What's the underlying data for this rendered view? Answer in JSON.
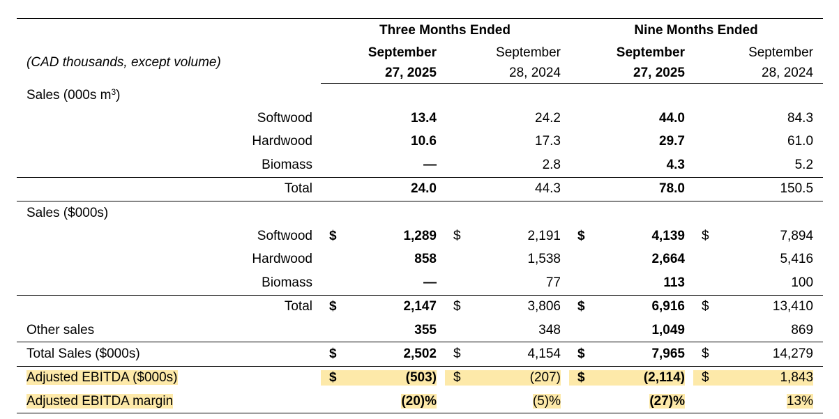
{
  "header": {
    "three_months": "Three Months Ended",
    "nine_months": "Nine Months Ended",
    "units_note": "(CAD thousands, except volume)",
    "col1_line1": "September",
    "col1_line2": "27, 2025",
    "col2_line1": "September",
    "col2_line2": "28, 2024",
    "col3_line1": "September",
    "col3_line2": "27, 2025",
    "col4_line1": "September",
    "col4_line2": "28, 2024"
  },
  "volume": {
    "section_label": "Sales (000s m",
    "section_sup": "3",
    "section_close": ")",
    "rows": [
      {
        "label": "Softwood",
        "v": [
          "13.4",
          "24.2",
          "44.0",
          "84.3"
        ]
      },
      {
        "label": "Hardwood",
        "v": [
          "10.6",
          "17.3",
          "29.7",
          "61.0"
        ]
      },
      {
        "label": "Biomass",
        "v": [
          "—",
          "2.8",
          "4.3",
          "5.2"
        ]
      }
    ],
    "total": {
      "label": "Total",
      "v": [
        "24.0",
        "44.3",
        "78.0",
        "150.5"
      ]
    }
  },
  "sales": {
    "section_label": "Sales ($000s)",
    "currency": "$",
    "rows": [
      {
        "label": "Softwood",
        "v": [
          "1,289",
          "2,191",
          "4,139",
          "7,894"
        ]
      },
      {
        "label": "Hardwood",
        "v": [
          "858",
          "1,538",
          "2,664",
          "5,416"
        ]
      },
      {
        "label": "Biomass",
        "v": [
          "—",
          "77",
          "113",
          "100"
        ]
      }
    ],
    "total": {
      "label": "Total",
      "v": [
        "2,147",
        "3,806",
        "6,916",
        "13,410"
      ]
    }
  },
  "other_sales": {
    "label": "Other sales",
    "v": [
      "355",
      "348",
      "1,049",
      "869"
    ]
  },
  "total_sales": {
    "label": "Total Sales ($000s)",
    "v": [
      "2,502",
      "4,154",
      "7,965",
      "14,279"
    ]
  },
  "adjusted_ebitda": {
    "label": "Adjusted EBITDA ($000s)",
    "v": [
      "(503)",
      "(207)",
      "(2,114)",
      "1,843"
    ]
  },
  "adjusted_ebitda_margin": {
    "label": "Adjusted EBITDA margin",
    "v": [
      "(20)%",
      "(5)%",
      "(27)%",
      "13%"
    ]
  },
  "colors": {
    "highlight": "#fde9a9"
  }
}
